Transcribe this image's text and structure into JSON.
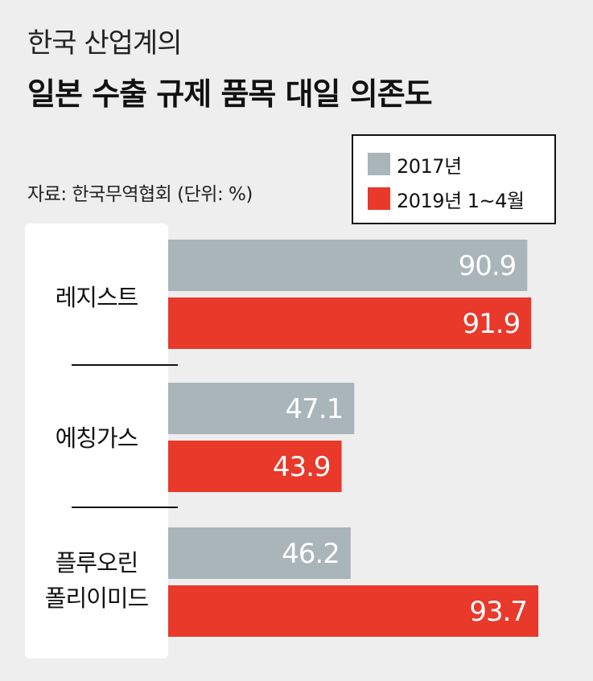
{
  "header": {
    "subtitle": "한국 산업계의",
    "title": "일본 수출 규제 품목 대일 의존도",
    "source": "자료: 한국무역협회 (단위: %)"
  },
  "colors": {
    "series_2017": "#a9b5b9",
    "series_2019": "#e8392b"
  },
  "chart_data": {
    "type": "bar",
    "orientation": "horizontal",
    "categories": [
      "레지스트",
      "에칭가스",
      "플루오린 폴리이미드"
    ],
    "category_lines": [
      [
        "레지스트"
      ],
      [
        "에칭가스"
      ],
      [
        "플루오린",
        "폴리이미드"
      ]
    ],
    "series": [
      {
        "name": "2017년",
        "values": [
          90.9,
          47.1,
          46.2
        ]
      },
      {
        "name": "2019년 1~4월",
        "values": [
          91.9,
          43.9,
          93.7
        ]
      }
    ],
    "xlim": [
      0,
      100
    ],
    "legend_position": "top-right",
    "grid": false
  }
}
